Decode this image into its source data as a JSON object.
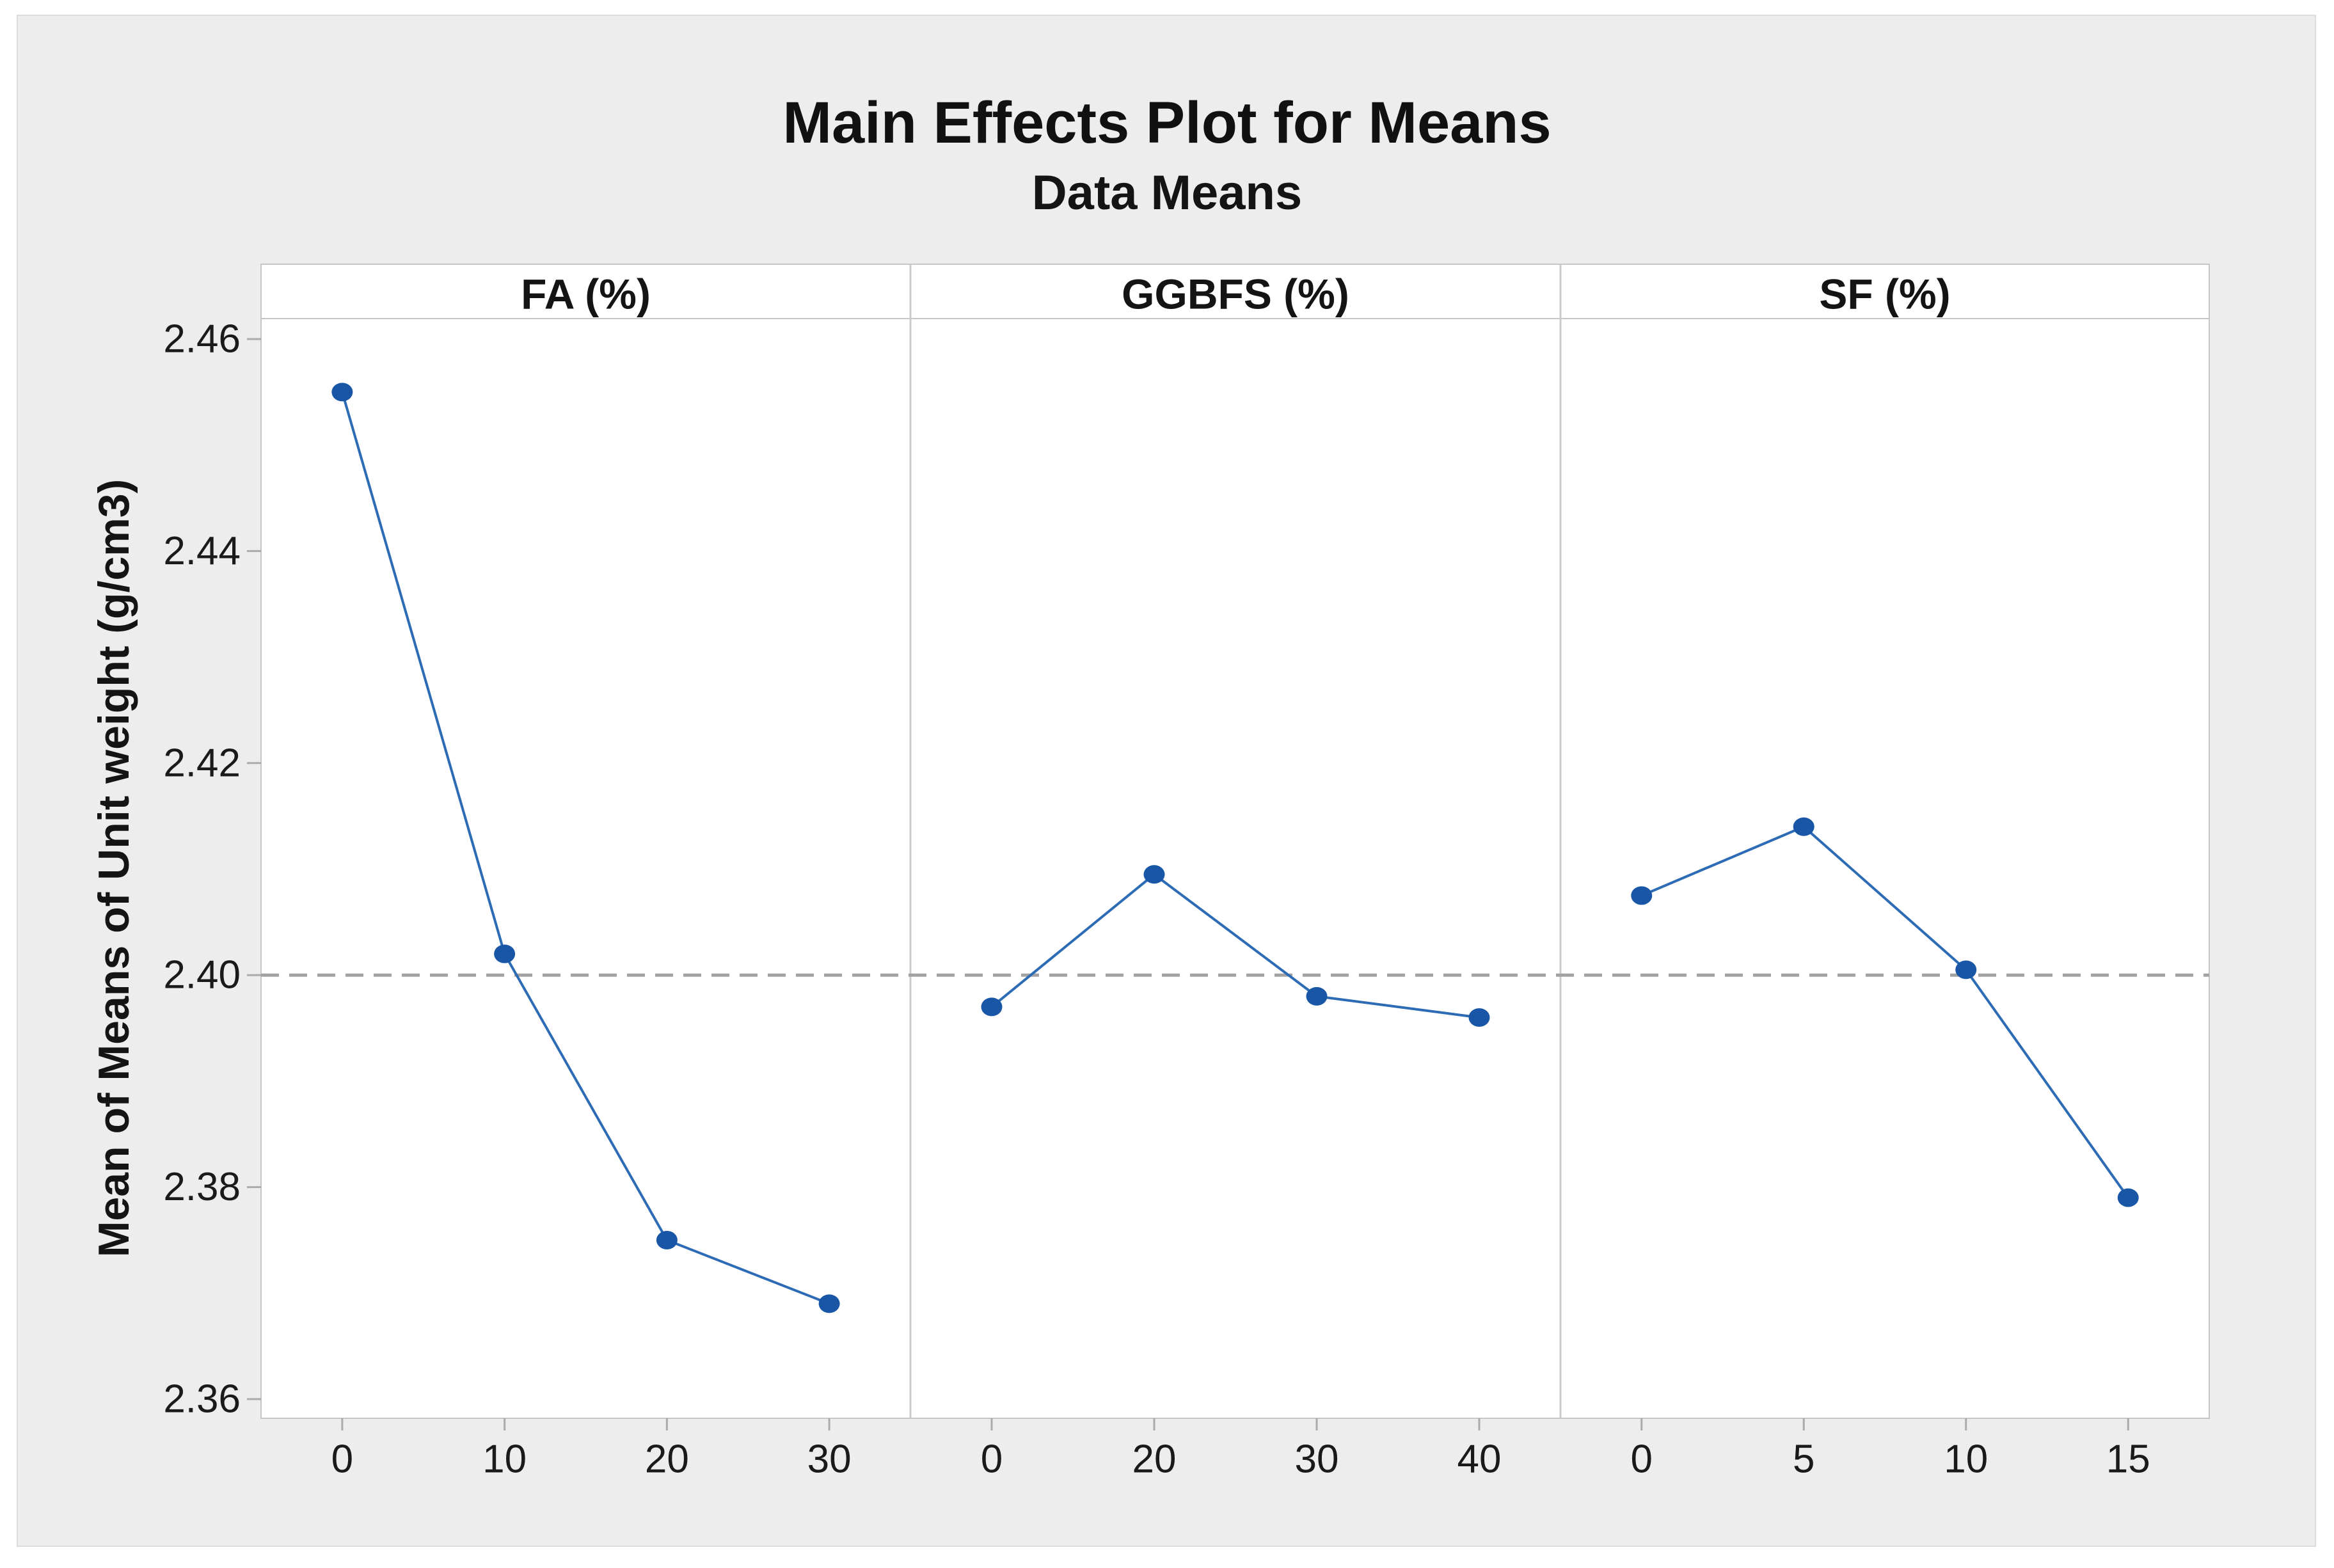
{
  "figure": {
    "title": "Main Effects Plot for Means",
    "subtitle": "Data Means",
    "background_color": "#ededed",
    "panel_background": "#ffffff"
  },
  "y_axis": {
    "label": "Mean of Means of Unit weight (g/cm3)",
    "tick_labels": [
      "2.46",
      "2.44",
      "2.42",
      "2.40",
      "2.38",
      "2.36"
    ],
    "tick_values": [
      2.46,
      2.44,
      2.42,
      2.4,
      2.38,
      2.36
    ]
  },
  "reference_line": {
    "value": 2.4,
    "style": "dashed",
    "color": "#a2a2a2"
  },
  "colors": {
    "marker": "#1956a6",
    "line": "#2d6cb5",
    "frame": "#c6c6c6",
    "divider": "#cbcbcb",
    "tick": "#ababab",
    "text": "#1a1a1a"
  },
  "chart_data": {
    "type": "line",
    "title": "Main Effects Plot for Means",
    "subtitle": "Data Means",
    "ylabel": "Mean of Means of Unit weight (g/cm3)",
    "ylim": [
      2.358,
      2.462
    ],
    "y_ticks": [
      2.36,
      2.38,
      2.4,
      2.42,
      2.44,
      2.46
    ],
    "grid": false,
    "legend": "none",
    "reference_line_y": 2.4,
    "panels": [
      {
        "header": "FA (%)",
        "x_labels": [
          "0",
          "10",
          "20",
          "30"
        ],
        "x": [
          0,
          10,
          20,
          30
        ],
        "y": [
          2.455,
          2.402,
          2.375,
          2.369
        ]
      },
      {
        "header": "GGBFS (%)",
        "x_labels": [
          "0",
          "20",
          "30",
          "40"
        ],
        "x": [
          0,
          20,
          30,
          40
        ],
        "y": [
          2.397,
          2.4095,
          2.398,
          2.396
        ]
      },
      {
        "header": "SF (%)",
        "x_labels": [
          "0",
          "5",
          "10",
          "15"
        ],
        "x": [
          0,
          5,
          10,
          15
        ],
        "y": [
          2.4075,
          2.414,
          2.4005,
          2.379
        ]
      }
    ]
  }
}
